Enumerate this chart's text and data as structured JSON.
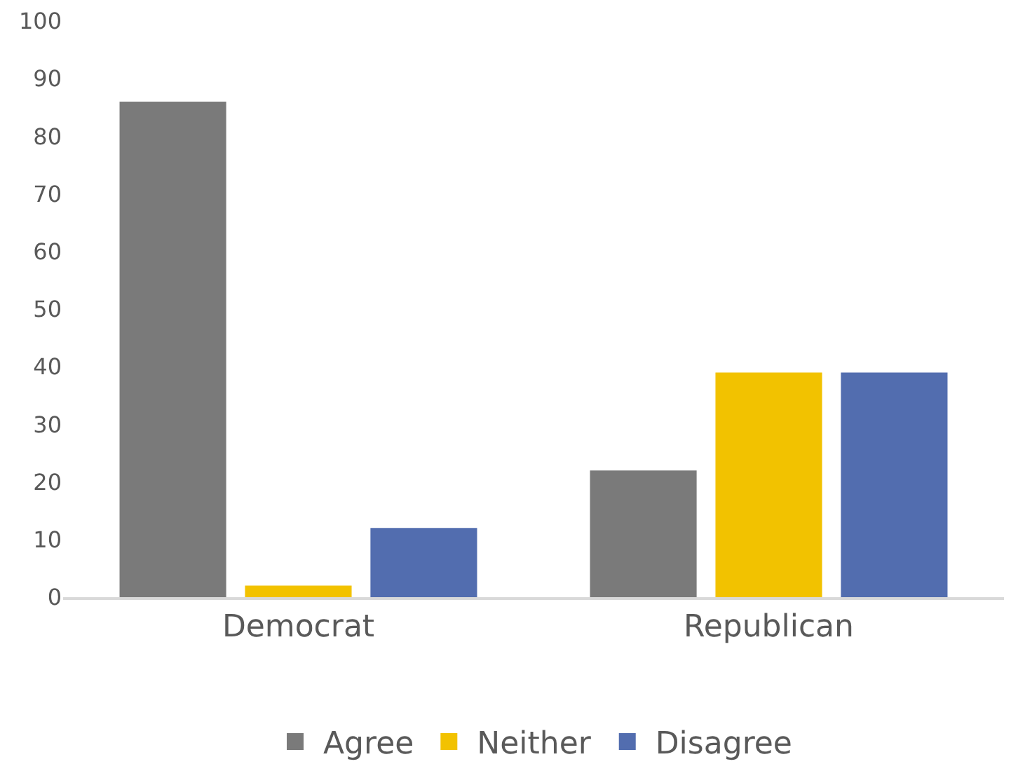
{
  "chart_data": {
    "type": "bar",
    "categories": [
      "Democrat",
      "Republican"
    ],
    "series": [
      {
        "name": "Agree",
        "color": "#7a7a7a",
        "values": [
          86,
          22
        ]
      },
      {
        "name": "Neither",
        "color": "#f2c200",
        "values": [
          2,
          39
        ]
      },
      {
        "name": "Disagree",
        "color": "#526daf",
        "values": [
          12,
          39
        ]
      }
    ],
    "ylim": [
      0,
      100
    ],
    "yticks": [
      0,
      10,
      20,
      30,
      40,
      50,
      60,
      70,
      80,
      90,
      100
    ],
    "grid": false,
    "legend": "bottom"
  }
}
